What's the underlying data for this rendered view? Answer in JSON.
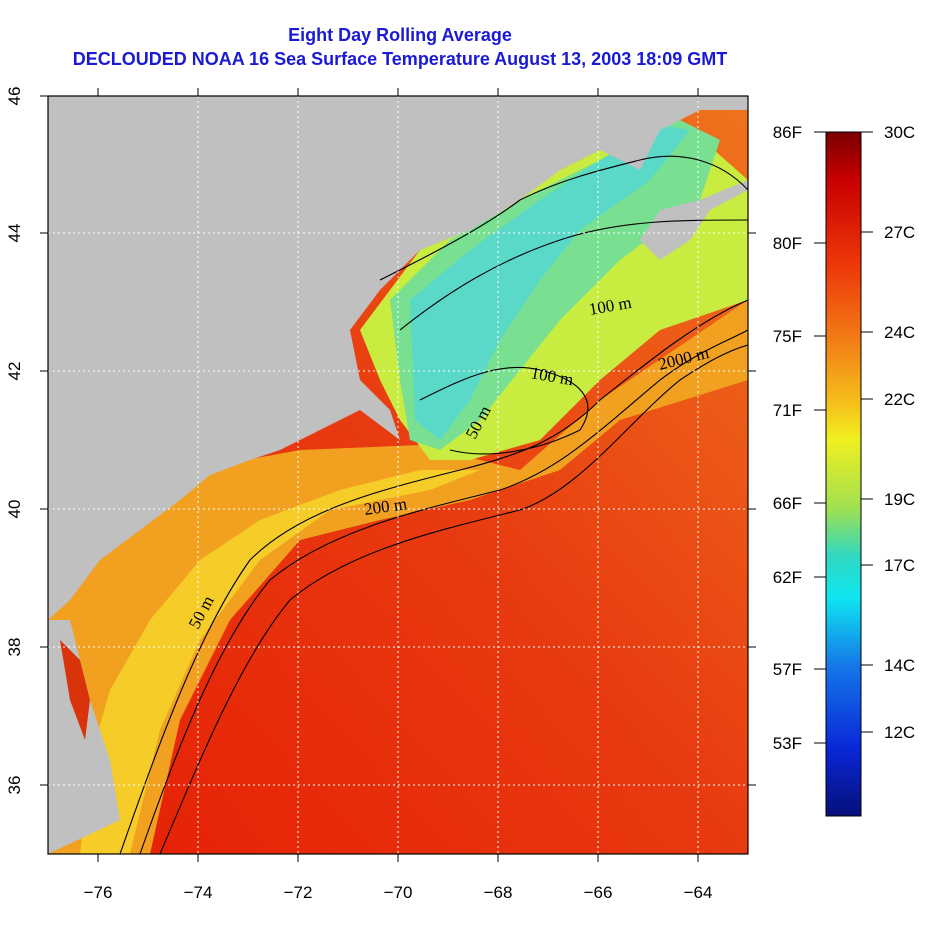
{
  "title_line1": "Eight Day Rolling Average",
  "title_line2": "DECLOUDED NOAA 16 Sea Surface Temperature August 13, 2003 18:09 GMT",
  "x_ticks": [
    "−76",
    "−74",
    "−72",
    "−70",
    "−68",
    "−66",
    "−64"
  ],
  "y_ticks": [
    "36",
    "38",
    "40",
    "42",
    "44",
    "46"
  ],
  "contour_labels": [
    "100 m",
    "2000 m",
    "100 m",
    "50 m",
    "200 m",
    "50 m"
  ],
  "colorbar": {
    "fahrenheit": [
      "86F",
      "80F",
      "75F",
      "71F",
      "66F",
      "62F",
      "57F",
      "53F"
    ],
    "celsius": [
      "30C",
      "27C",
      "24C",
      "22C",
      "19C",
      "17C",
      "14C",
      "12C"
    ]
  },
  "colors": {
    "land": "#c0c0c0",
    "warm": "#e62a0a",
    "cool": "#5ad8c8",
    "title": "#1a1ad6"
  }
}
